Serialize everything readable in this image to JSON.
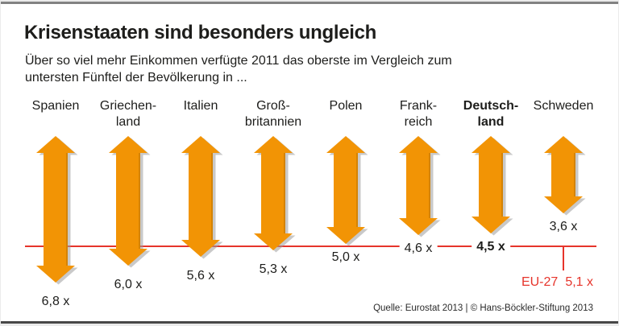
{
  "title": "Krisenstaaten sind besonders ungleich",
  "subtitle_line1": "Über so viel mehr Einkommen verfügte 2011 das oberste im Vergleich zum",
  "subtitle_line2": "untersten Fünftel der Bevölkerung in ...",
  "source": "Quelle: Eurostat 2013 | © Hans-Böckler-Stiftung 2013",
  "eu_reference": {
    "name": "EU-27",
    "value": 5.1,
    "value_label": "5,1 x"
  },
  "colors": {
    "arrow": "#F29405",
    "arrow_shadow": "#9d9d9d",
    "arrow_edge": "#C97D04",
    "reference": "#E6342B",
    "text": "#1d1d1b"
  },
  "chart_data": {
    "type": "bar",
    "variant": "vertical-double-arrow",
    "title": "Krisenstaaten sind besonders ungleich",
    "subtitle": "Über so viel mehr Einkommen verfügte 2011 das oberste im Vergleich zum untersten Fünftel der Bevölkerung in ...",
    "categories": [
      "Spanien",
      "Griechen-\nland",
      "Italien",
      "Groß-\nbritannien",
      "Polen",
      "Frank-\nreich",
      "Deutsch-\nland",
      "Schweden"
    ],
    "values": [
      6.8,
      6.0,
      5.6,
      5.3,
      5.0,
      4.6,
      4.5,
      3.6
    ],
    "value_labels": [
      "6,8 x",
      "6,0 x",
      "5,6 x",
      "5,3 x",
      "5,0 x",
      "4,6 x",
      "4,5 x",
      "3,6 x"
    ],
    "emphasized_index": 6,
    "reference_line": {
      "label": "EU-27",
      "value": 5.1,
      "value_label": "5,1 x"
    },
    "ylim": [
      0,
      6.8
    ],
    "grid": false,
    "legend": false
  }
}
